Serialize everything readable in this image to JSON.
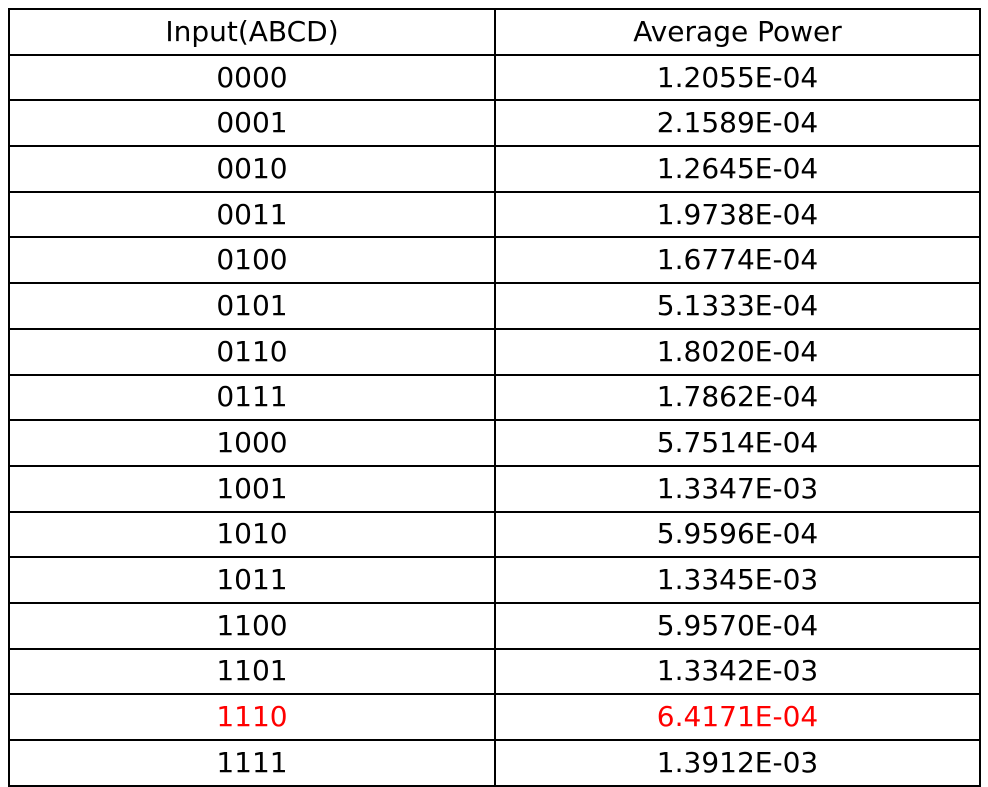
{
  "table": {
    "headers": [
      "Input(ABCD)",
      "Average Power"
    ],
    "highlight_color": "#ff0000",
    "rows": [
      {
        "input": "0000",
        "power": "1.2055E-04",
        "highlight": false
      },
      {
        "input": "0001",
        "power": "2.1589E-04",
        "highlight": false
      },
      {
        "input": "0010",
        "power": "1.2645E-04",
        "highlight": false
      },
      {
        "input": "0011",
        "power": "1.9738E-04",
        "highlight": false
      },
      {
        "input": "0100",
        "power": "1.6774E-04",
        "highlight": false
      },
      {
        "input": "0101",
        "power": "5.1333E-04",
        "highlight": false
      },
      {
        "input": "0110",
        "power": "1.8020E-04",
        "highlight": false
      },
      {
        "input": "0111",
        "power": "1.7862E-04",
        "highlight": false
      },
      {
        "input": "1000",
        "power": "5.7514E-04",
        "highlight": false
      },
      {
        "input": "1001",
        "power": "1.3347E-03",
        "highlight": false
      },
      {
        "input": "1010",
        "power": "5.9596E-04",
        "highlight": false
      },
      {
        "input": "1011",
        "power": "1.3345E-03",
        "highlight": false
      },
      {
        "input": "1100",
        "power": "5.9570E-04",
        "highlight": false
      },
      {
        "input": "1101",
        "power": "1.3342E-03",
        "highlight": false
      },
      {
        "input": "1110",
        "power": "6.4171E-04",
        "highlight": true
      },
      {
        "input": "1111",
        "power": "1.3912E-03",
        "highlight": false
      }
    ]
  }
}
